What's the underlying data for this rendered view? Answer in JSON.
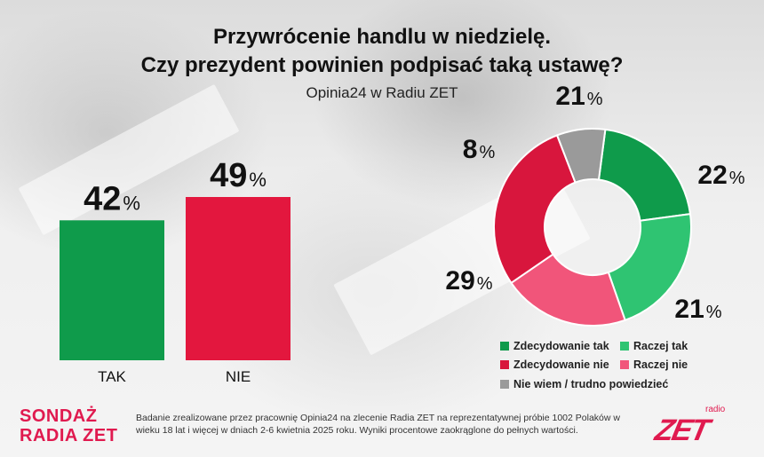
{
  "header": {
    "title_line1": "Przywrócenie handlu w niedzielę.",
    "title_line2": "Czy prezydent powinien podpisać taką ustawę?",
    "subtitle": "Opinia24 w Radiu ZET"
  },
  "chart_data": [
    {
      "type": "bar",
      "categories": [
        "TAK",
        "NIE"
      ],
      "values": [
        42,
        49
      ],
      "unit": "%",
      "colors": [
        "#0f9b4b",
        "#e3173e"
      ]
    },
    {
      "type": "pie",
      "variant": "donut",
      "slices": [
        {
          "label": "Zdecydowanie tak",
          "value": 21,
          "color": "#0f9b4b"
        },
        {
          "label": "Raczej tak",
          "value": 22,
          "color": "#2fc472"
        },
        {
          "label": "Raczej nie",
          "value": 21,
          "color": "#f1557a"
        },
        {
          "label": "Zdecydowanie nie",
          "value": 29,
          "color": "#d8163d"
        },
        {
          "label": "Nie wiem / trudno powiedzieć",
          "value": 8,
          "color": "#9a9a9a"
        }
      ],
      "unit": "%",
      "legend_position": "bottom"
    }
  ],
  "legend": {
    "items": [
      {
        "label": "Zdecydowanie tak",
        "color": "#0f9b4b"
      },
      {
        "label": "Raczej tak",
        "color": "#2fc472"
      },
      {
        "label": "Zdecydowanie nie",
        "color": "#d8163d"
      },
      {
        "label": "Raczej nie",
        "color": "#f1557a"
      },
      {
        "label": "Nie wiem / trudno powiedzieć",
        "color": "#9a9a9a"
      }
    ]
  },
  "footer": {
    "brand_line1": "SONDAŻ",
    "brand_line2": "RADIA ZET",
    "note": "Badanie zrealizowane przez pracownię Opinia24 na zlecenie Radia ZET na reprezentatywnej próbie 1002 Polaków w wieku 18 lat i więcej w dniach 2-6 kwietnia 2025 roku. Wyniki procentowe zaokrąglone do pełnych wartości.",
    "logo_text": "ZET",
    "logo_small": "radio"
  }
}
